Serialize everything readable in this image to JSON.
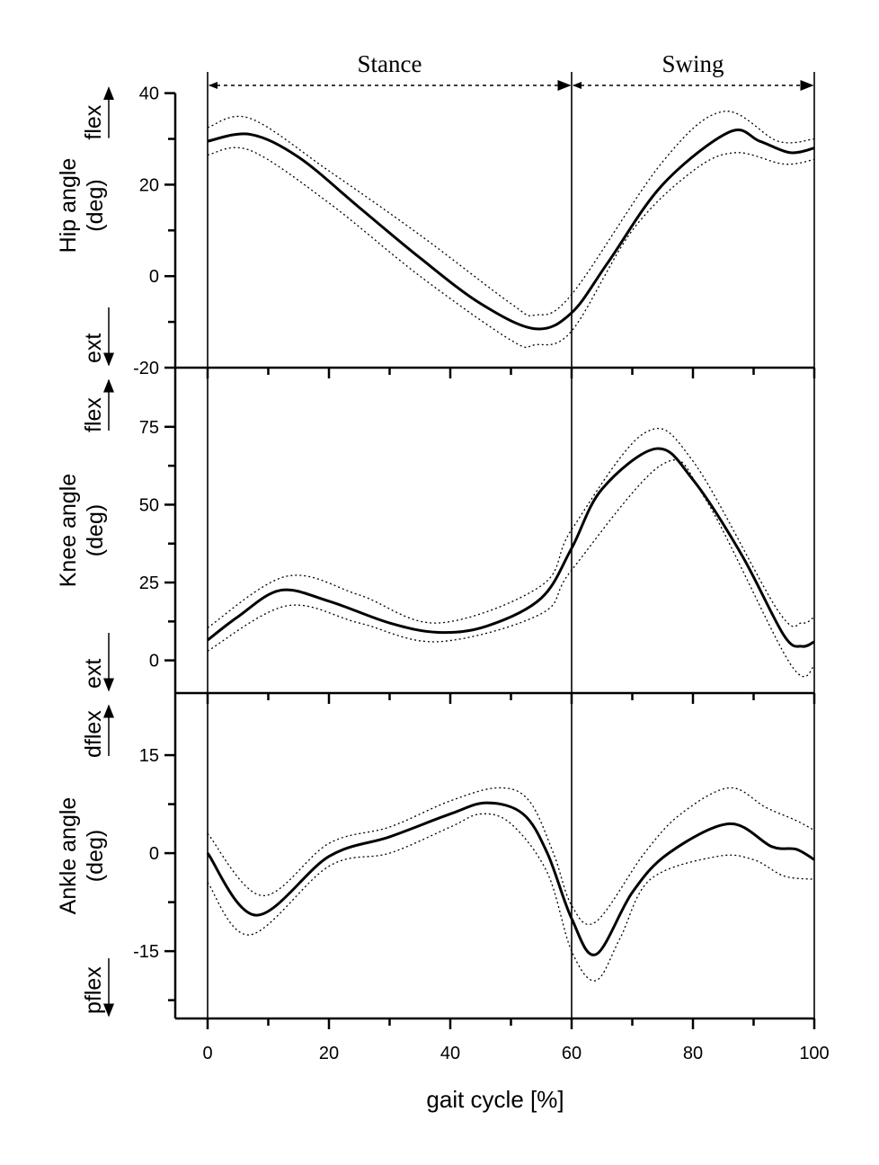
{
  "chart_data": {
    "type": "line",
    "xlabel": "gait cycle [%]",
    "xlim": [
      0,
      100
    ],
    "xticks": [
      0,
      20,
      40,
      60,
      80,
      100
    ],
    "phases": [
      {
        "label": "Stance",
        "from": 0,
        "to": 60
      },
      {
        "label": "Swing",
        "from": 60,
        "to": 100
      }
    ],
    "panels": [
      {
        "ylabel": "Hip angle",
        "yunit": "(deg)",
        "up": "flex",
        "down": "ext",
        "ylim": [
          -20,
          47
        ],
        "ticks": [
          -20,
          0,
          20,
          40
        ],
        "minor": 10,
        "mean": [
          [
            0,
            29.5
          ],
          [
            7,
            31
          ],
          [
            15,
            26
          ],
          [
            25,
            15
          ],
          [
            35,
            4
          ],
          [
            45,
            -6
          ],
          [
            54,
            -11.5
          ],
          [
            60,
            -8
          ],
          [
            66,
            3
          ],
          [
            75,
            20
          ],
          [
            86,
            31.5
          ],
          [
            91,
            29.5
          ],
          [
            96,
            27
          ],
          [
            100,
            28
          ]
        ],
        "upper": [
          [
            0,
            32.5
          ],
          [
            7,
            34.5
          ],
          [
            20,
            23
          ],
          [
            35,
            9
          ],
          [
            50,
            -6
          ],
          [
            54,
            -8.5
          ],
          [
            60,
            -4
          ],
          [
            75,
            25
          ],
          [
            85,
            36
          ],
          [
            94,
            29.5
          ],
          [
            100,
            30
          ]
        ],
        "lower": [
          [
            0,
            26.5
          ],
          [
            7,
            27.5
          ],
          [
            20,
            16
          ],
          [
            35,
            0
          ],
          [
            50,
            -14
          ],
          [
            54,
            -15
          ],
          [
            60,
            -12
          ],
          [
            70,
            10
          ],
          [
            80,
            23
          ],
          [
            87,
            27
          ],
          [
            95,
            24.5
          ],
          [
            100,
            25.5
          ]
        ]
      },
      {
        "ylabel": "Knee angle",
        "yunit": "(deg)",
        "up": "flex",
        "down": "ext",
        "ylim": [
          -10.5,
          94
        ],
        "ticks": [
          0,
          25,
          50,
          75
        ],
        "minor": 12.5,
        "mean": [
          [
            0,
            6.5
          ],
          [
            5,
            14
          ],
          [
            12,
            22.5
          ],
          [
            20,
            19
          ],
          [
            30,
            12
          ],
          [
            38,
            9
          ],
          [
            46,
            11
          ],
          [
            55,
            20
          ],
          [
            60,
            36
          ],
          [
            65,
            55
          ],
          [
            74,
            68
          ],
          [
            80,
            58
          ],
          [
            88,
            34
          ],
          [
            95,
            8
          ],
          [
            98,
            4.5
          ],
          [
            100,
            6
          ]
        ],
        "upper": [
          [
            0,
            10.5
          ],
          [
            13,
            27
          ],
          [
            25,
            21
          ],
          [
            38,
            12
          ],
          [
            55,
            24
          ],
          [
            60,
            42
          ],
          [
            72,
            73
          ],
          [
            80,
            64
          ],
          [
            94,
            16
          ],
          [
            98,
            12
          ],
          [
            100,
            14
          ]
        ],
        "lower": [
          [
            0,
            3
          ],
          [
            13,
            17.5
          ],
          [
            25,
            12
          ],
          [
            38,
            6
          ],
          [
            55,
            15
          ],
          [
            60,
            29
          ],
          [
            75,
            63
          ],
          [
            82,
            52
          ],
          [
            96,
            -1
          ],
          [
            100,
            -2
          ]
        ]
      },
      {
        "ylabel": "Ankle angle",
        "yunit": "(deg)",
        "up": "dflex",
        "down": "pflex",
        "ylim": [
          -25.3,
          24.5
        ],
        "ticks": [
          -15,
          0,
          15
        ],
        "minor": 7.5,
        "mean": [
          [
            0,
            0
          ],
          [
            8,
            -9.5
          ],
          [
            20,
            -0.5
          ],
          [
            30,
            2.5
          ],
          [
            40,
            6
          ],
          [
            46,
            7.7
          ],
          [
            52,
            6
          ],
          [
            56,
            0
          ],
          [
            60,
            -10
          ],
          [
            64,
            -15.5
          ],
          [
            70,
            -6
          ],
          [
            76,
            0
          ],
          [
            86,
            4.5
          ],
          [
            93,
            1
          ],
          [
            97,
            0.6
          ],
          [
            100,
            -1
          ]
        ],
        "upper": [
          [
            0,
            3
          ],
          [
            9,
            -6.5
          ],
          [
            20,
            1.5
          ],
          [
            30,
            4
          ],
          [
            40,
            8
          ],
          [
            48,
            10
          ],
          [
            53,
            8
          ],
          [
            57,
            0
          ],
          [
            60,
            -8
          ],
          [
            64,
            -10.5
          ],
          [
            72,
            0
          ],
          [
            78,
            6
          ],
          [
            86,
            10
          ],
          [
            92,
            7
          ],
          [
            97,
            5
          ],
          [
            100,
            3.5
          ]
        ],
        "lower": [
          [
            0,
            -4.5
          ],
          [
            7,
            -12.5
          ],
          [
            20,
            -2
          ],
          [
            30,
            0
          ],
          [
            40,
            4
          ],
          [
            45,
            6
          ],
          [
            50,
            4.5
          ],
          [
            56,
            -3
          ],
          [
            60,
            -15
          ],
          [
            64,
            -19.5
          ],
          [
            68,
            -13
          ],
          [
            73,
            -4
          ],
          [
            84,
            -0.5
          ],
          [
            90,
            -1
          ],
          [
            95,
            -3.5
          ],
          [
            100,
            -4
          ]
        ]
      }
    ]
  }
}
